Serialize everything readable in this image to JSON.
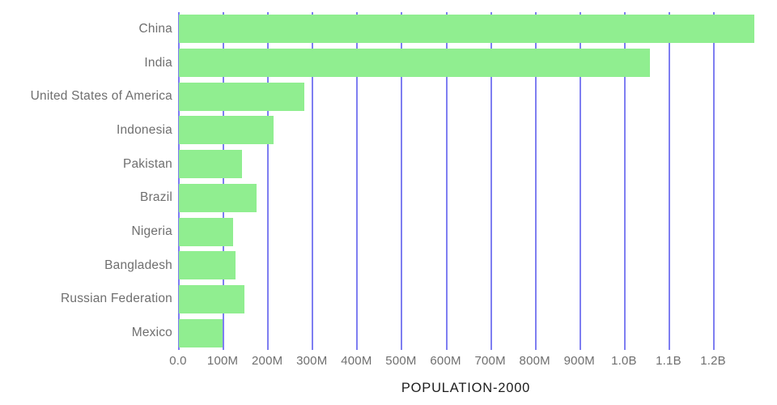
{
  "chart_data": {
    "type": "bar",
    "orientation": "horizontal",
    "title": "POPULATION-2000",
    "categories": [
      "China",
      "India",
      "United States of America",
      "Indonesia",
      "Pakistan",
      "Brazil",
      "Nigeria",
      "Bangladesh",
      "Russian Federation",
      "Mexico"
    ],
    "values_millions": [
      1290.6,
      1056.6,
      281.7,
      211.5,
      142.3,
      174.8,
      122.3,
      127.7,
      146.8,
      98.9
    ],
    "xlabel": "",
    "ylabel": "",
    "xlim_millions": [
      0,
      1290.6
    ],
    "x_tick_labels": [
      "0.0",
      "100M",
      "200M",
      "300M",
      "400M",
      "500M",
      "600M",
      "700M",
      "800M",
      "900M",
      "1.0B",
      "1.1B",
      "1.2B"
    ],
    "x_tick_values_millions": [
      0,
      100,
      200,
      300,
      400,
      500,
      600,
      700,
      800,
      900,
      1000,
      1100,
      1200
    ],
    "grid": "vertical-on",
    "legend": "none",
    "colors": {
      "bar": "#90ee90",
      "gridline": "#7e7ef1",
      "axis_label_text": "#6f6f6f",
      "title_text": "#1d1d1d",
      "background": "#ffffff"
    }
  }
}
